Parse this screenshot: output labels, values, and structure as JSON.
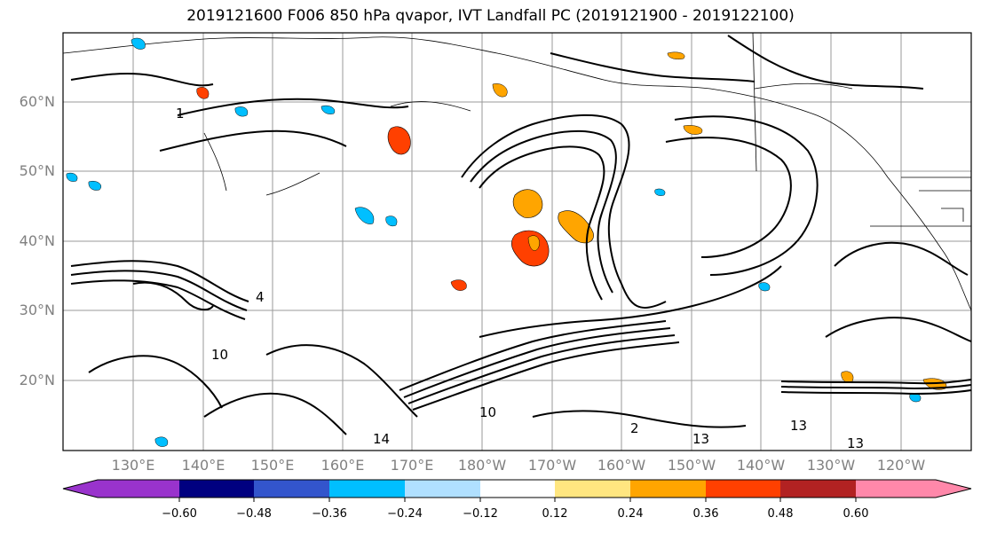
{
  "title": "2019121600 F006 850 hPa qvapor, IVT Landfall PC (2019121900 - 2019122100)",
  "latitude_labels": [
    "60°N",
    "50°N",
    "40°N",
    "30°N",
    "20°N"
  ],
  "longitude_labels": [
    "130°E",
    "140°E",
    "150°E",
    "160°E",
    "170°E",
    "180°W",
    "170°W",
    "160°W",
    "150°W",
    "140°W",
    "130°W",
    "120°W"
  ],
  "colorbar": {
    "tick_labels": [
      "−0.60",
      "−0.48",
      "−0.36",
      "−0.24",
      "−0.12",
      "0.12",
      "0.24",
      "0.36",
      "0.48",
      "0.60"
    ],
    "colors": [
      "#9933cc",
      "#000080",
      "#3355cc",
      "#00bfff",
      "#b0e0ff",
      "#ffffff",
      "#ffe680",
      "#ffa500",
      "#ff4000",
      "#b22222",
      "#ff88aa"
    ]
  },
  "contour_labels": [
    "1",
    "13",
    "10",
    "10",
    "2",
    "13",
    "13",
    "14",
    "4"
  ]
}
